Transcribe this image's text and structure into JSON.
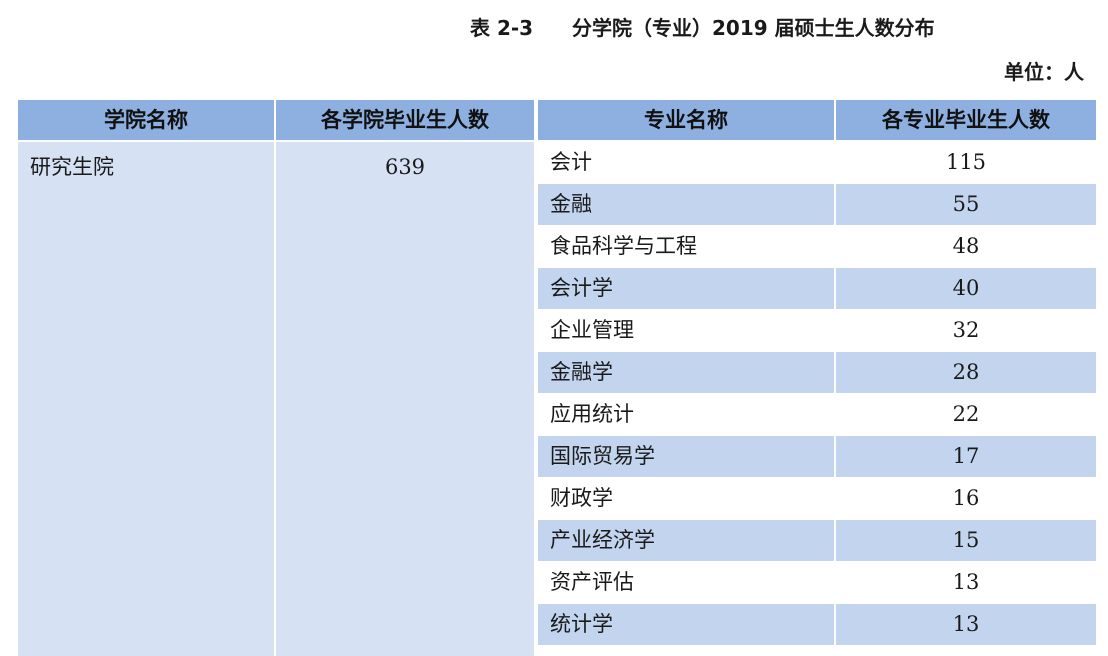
{
  "title": {
    "number": "表 2-3",
    "text": "分学院（专业）2019 届硕士生人数分布"
  },
  "unit": "单位：人",
  "headers": {
    "college": "学院名称",
    "college_count": "各学院毕业生人数",
    "major": "专业名称",
    "major_count": "各专业毕业生人数"
  },
  "college": {
    "name": "研究生院",
    "count": "639"
  },
  "majors": [
    {
      "name": "会计",
      "count": "115"
    },
    {
      "name": "金融",
      "count": "55"
    },
    {
      "name": "食品科学与工程",
      "count": "48"
    },
    {
      "name": "会计学",
      "count": "40"
    },
    {
      "name": "企业管理",
      "count": "32"
    },
    {
      "name": "金融学",
      "count": "28"
    },
    {
      "name": "应用统计",
      "count": "22"
    },
    {
      "name": "国际贸易学",
      "count": "17"
    },
    {
      "name": "财政学",
      "count": "16"
    },
    {
      "name": "产业经济学",
      "count": "15"
    },
    {
      "name": "资产评估",
      "count": "13"
    },
    {
      "name": "统计学",
      "count": "13"
    }
  ],
  "colors": {
    "header_bg": "#8eb0e0",
    "body_bg": "#d6e2f4",
    "stripe_bg": "#c3d4ee"
  }
}
